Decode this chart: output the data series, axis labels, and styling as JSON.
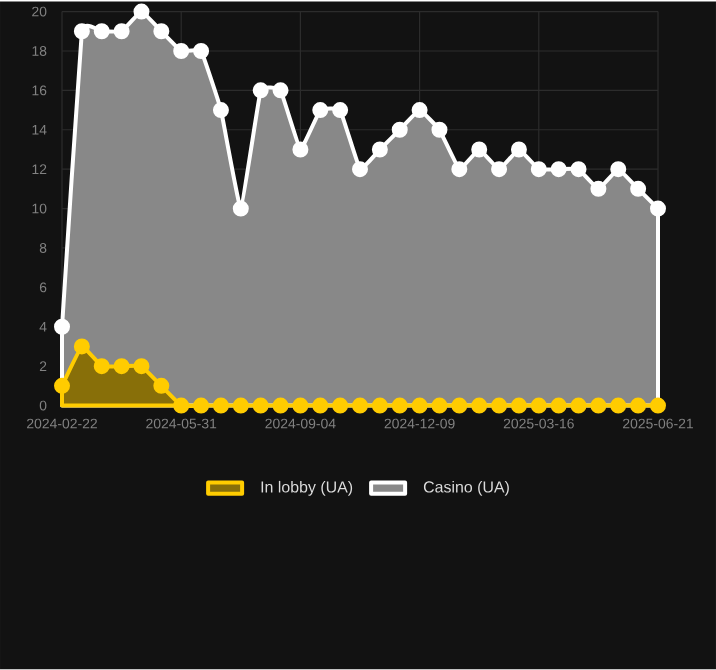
{
  "chart_data": {
    "type": "area",
    "categories": [
      "2024-02-22",
      null,
      null,
      null,
      null,
      null,
      "2024-05-31",
      null,
      null,
      null,
      null,
      null,
      "2024-09-04",
      null,
      null,
      null,
      null,
      null,
      "2024-12-09",
      null,
      null,
      null,
      null,
      null,
      "2025-03-16",
      null,
      null,
      null,
      null,
      null,
      "2025-06-21"
    ],
    "series": [
      {
        "name": "In lobby (UA)",
        "color": "#ffcc00",
        "values": [
          1,
          3,
          2,
          2,
          2,
          1,
          0,
          0,
          0,
          0,
          0,
          0,
          0,
          0,
          0,
          0,
          0,
          0,
          0,
          0,
          0,
          0,
          0,
          0,
          0,
          0,
          0,
          0,
          0,
          0,
          0
        ]
      },
      {
        "name": "Casino (UA)",
        "color": "#ffffff",
        "values": [
          4,
          19,
          19,
          19,
          20,
          19,
          18,
          18,
          15,
          10,
          16,
          16,
          13,
          15,
          15,
          12,
          13,
          14,
          15,
          14,
          12,
          13,
          12,
          13,
          12,
          12,
          12,
          11,
          12,
          11,
          10
        ]
      }
    ],
    "ylim": [
      0,
      20
    ],
    "yticks": [
      0,
      2,
      4,
      6,
      8,
      10,
      12,
      14,
      16,
      18,
      20
    ],
    "grid": true,
    "legend": "bottom",
    "marker": "circle",
    "line_style": "solid"
  }
}
